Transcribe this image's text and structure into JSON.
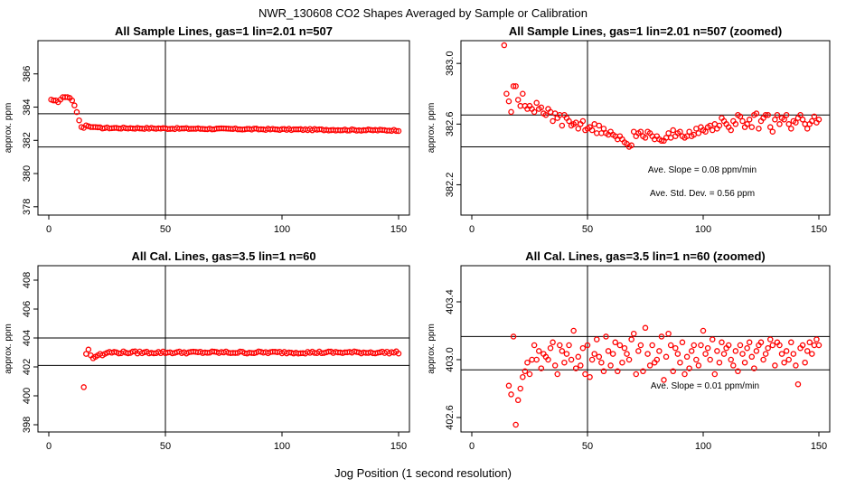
{
  "figure": {
    "title": "NWR_130608  CO2 Shapes Averaged by Sample or Calibration",
    "xlabel": "Jog Position (1 second resolution)"
  },
  "colors": {
    "points": "#ff0000",
    "lines": "#000000"
  },
  "chart_data": [
    {
      "type": "scatter",
      "title": "All Sample Lines, gas=1 lin=2.01 n=507",
      "ylabel": "approx. ppm",
      "xlim": [
        0,
        150
      ],
      "ylim": [
        377.5,
        388
      ],
      "xticks": [
        "0",
        "50",
        "100",
        "150"
      ],
      "xtick_values": [
        0,
        50,
        100,
        150
      ],
      "yticks": [
        "378",
        "380",
        "382",
        "384",
        "386"
      ],
      "ytick_values": [
        378,
        380,
        382,
        384,
        386
      ],
      "vline": 50,
      "hlines": [
        383.6,
        381.6
      ],
      "annotations": [],
      "series": [
        {
          "x": [
            1,
            2,
            3,
            4,
            5,
            6,
            7,
            8,
            9,
            10,
            11,
            12,
            13,
            14,
            15,
            16,
            17,
            18,
            19,
            20
          ],
          "y": [
            384.45,
            384.4,
            384.4,
            384.3,
            384.45,
            384.6,
            384.6,
            384.6,
            384.55,
            384.4,
            384.1,
            383.7,
            383.2,
            382.8,
            382.75,
            382.9,
            382.85,
            382.8,
            382.8,
            382.8
          ]
        },
        {
          "x_start": 21,
          "x_end": 150,
          "y_start": 382.75,
          "y_end": 382.6,
          "jitter": 0.04
        }
      ]
    },
    {
      "type": "scatter",
      "title": "All Sample Lines, gas=1 lin=2.01 n=507 (zoomed)",
      "ylabel": "approx. ppm",
      "xlim": [
        0,
        150
      ],
      "ylim": [
        382.0,
        383.15
      ],
      "xticks": [
        "0",
        "50",
        "100",
        "150"
      ],
      "xtick_values": [
        0,
        50,
        100,
        150
      ],
      "yticks": [
        "382.2",
        "382.6",
        "383.0"
      ],
      "ytick_values": [
        382.2,
        382.6,
        383.0
      ],
      "vline": 50,
      "hlines": [
        382.66,
        382.45
      ],
      "annotations": [
        "Ave. Slope =  0.08  ppm/min",
        "Ave. Std. Dev. =  0.56  ppm"
      ],
      "series": [
        {
          "x": [
            14,
            15,
            16,
            17,
            18,
            19,
            20,
            21,
            22,
            23,
            24,
            25,
            26,
            27,
            28,
            29,
            30,
            31,
            32,
            33,
            34,
            35,
            36,
            37,
            38,
            39,
            40,
            41,
            42,
            43,
            44,
            45,
            46,
            47,
            48,
            49,
            50,
            51,
            52,
            53,
            54,
            55,
            56,
            57,
            58,
            59,
            60,
            61,
            62,
            63,
            64,
            65,
            66,
            67,
            68,
            69,
            70,
            71,
            72,
            73,
            74,
            75,
            76,
            77,
            78,
            79,
            80,
            81,
            82,
            83,
            84,
            85,
            86,
            87,
            88,
            89,
            90,
            91,
            92,
            93,
            94,
            95,
            96,
            97,
            98,
            99,
            100,
            101,
            102,
            103,
            104,
            105,
            106,
            107,
            108,
            109,
            110,
            111,
            112,
            113,
            114,
            115,
            116,
            117,
            118,
            119,
            120,
            121,
            122,
            123,
            124,
            125,
            126,
            127,
            128,
            129,
            130,
            131,
            132,
            133,
            134,
            135,
            136,
            137,
            138,
            139,
            140,
            141,
            142,
            143,
            144,
            145,
            146,
            147,
            148,
            149,
            150
          ],
          "y": [
            383.12,
            382.8,
            382.75,
            382.68,
            382.85,
            382.85,
            382.76,
            382.72,
            382.8,
            382.72,
            382.7,
            382.72,
            382.7,
            382.68,
            382.74,
            382.7,
            382.71,
            382.67,
            382.66,
            382.7,
            382.68,
            382.62,
            382.67,
            382.64,
            382.66,
            382.59,
            382.66,
            382.64,
            382.62,
            382.59,
            382.6,
            382.61,
            382.57,
            382.6,
            382.62,
            382.56,
            382.57,
            382.58,
            382.56,
            382.6,
            382.54,
            382.59,
            382.54,
            382.57,
            382.54,
            382.53,
            382.55,
            382.53,
            382.52,
            382.5,
            382.52,
            382.5,
            382.48,
            382.47,
            382.45,
            382.46,
            382.55,
            382.52,
            382.54,
            382.55,
            382.52,
            382.51,
            382.55,
            382.54,
            382.52,
            382.5,
            382.52,
            382.5,
            382.49,
            382.49,
            382.51,
            382.54,
            382.51,
            382.56,
            382.52,
            382.54,
            382.55,
            382.52,
            382.51,
            382.52,
            382.55,
            382.52,
            382.53,
            382.57,
            382.54,
            382.58,
            382.56,
            382.55,
            382.58,
            382.59,
            382.56,
            382.6,
            382.57,
            382.59,
            382.64,
            382.62,
            382.6,
            382.58,
            382.56,
            382.62,
            382.6,
            382.66,
            382.65,
            382.62,
            382.58,
            382.6,
            382.63,
            382.58,
            382.66,
            382.67,
            382.57,
            382.62,
            382.64,
            382.66,
            382.66,
            382.58,
            382.55,
            382.63,
            382.66,
            382.6,
            382.64,
            382.63,
            382.66,
            382.6,
            382.57,
            382.62,
            382.61,
            382.64,
            382.66,
            382.63,
            382.6,
            382.57,
            382.6,
            382.62,
            382.65,
            382.61,
            382.63
          ]
        }
      ]
    },
    {
      "type": "scatter",
      "title": "All Cal. Lines, gas=3.5 lin=1 n=60",
      "ylabel": "approx. ppm",
      "xlim": [
        0,
        150
      ],
      "ylim": [
        397.5,
        409
      ],
      "xticks": [
        "0",
        "50",
        "100",
        "150"
      ],
      "xtick_values": [
        0,
        50,
        100,
        150
      ],
      "yticks": [
        "398",
        "400",
        "402",
        "404",
        "406",
        "408"
      ],
      "ytick_values": [
        398,
        400,
        402,
        404,
        406,
        408
      ],
      "vline": 50,
      "hlines": [
        404.0,
        402.1
      ],
      "annotations": [],
      "series": [
        {
          "x": [
            15,
            16,
            17,
            18,
            19,
            20,
            21,
            22,
            23,
            24
          ],
          "y": [
            400.6,
            402.9,
            403.2,
            402.8,
            402.6,
            402.7,
            402.8,
            402.9,
            402.8,
            402.9
          ]
        },
        {
          "x_start": 25,
          "x_end": 150,
          "y_start": 403.0,
          "y_end": 403.0,
          "jitter": 0.08
        }
      ]
    },
    {
      "type": "scatter",
      "title": "All Cal. Lines, gas=3.5 lin=1 n=60 (zoomed)",
      "ylabel": "approx. ppm",
      "xlim": [
        0,
        150
      ],
      "ylim": [
        402.5,
        403.65
      ],
      "xticks": [
        "0",
        "50",
        "100",
        "150"
      ],
      "xtick_values": [
        0,
        50,
        100,
        150
      ],
      "yticks": [
        "402.6",
        "403.0",
        "403.4"
      ],
      "ytick_values": [
        402.6,
        403.0,
        403.4
      ],
      "vline": 50,
      "hlines": [
        403.16,
        402.93
      ],
      "annotations": [
        "Ave. Slope =  0.01  ppm/min"
      ],
      "series": [
        {
          "x": [
            16,
            17,
            18,
            19,
            20,
            21,
            22,
            23,
            24,
            25,
            26,
            27,
            28,
            29,
            30,
            31,
            32,
            33,
            34,
            35,
            36,
            37,
            38,
            39,
            40,
            41,
            42,
            43,
            44,
            45,
            46,
            47,
            48,
            49,
            50,
            51,
            52,
            53,
            54,
            55,
            56,
            57,
            58,
            59,
            60,
            61,
            62,
            63,
            64,
            65,
            66,
            67,
            68,
            69,
            70,
            71,
            72,
            73,
            74,
            75,
            76,
            77,
            78,
            79,
            80,
            81,
            82,
            83,
            84,
            85,
            86,
            87,
            88,
            89,
            90,
            91,
            92,
            93,
            94,
            95,
            96,
            97,
            98,
            99,
            100,
            101,
            102,
            103,
            104,
            105,
            106,
            107,
            108,
            109,
            110,
            111,
            112,
            113,
            114,
            115,
            116,
            117,
            118,
            119,
            120,
            121,
            122,
            123,
            124,
            125,
            126,
            127,
            128,
            129,
            130,
            131,
            132,
            133,
            134,
            135,
            136,
            137,
            138,
            139,
            140,
            141,
            142,
            143,
            144,
            145,
            146,
            147,
            148,
            149,
            150
          ],
          "y": [
            402.82,
            402.76,
            403.16,
            402.55,
            402.72,
            402.8,
            402.88,
            402.92,
            402.98,
            402.9,
            403.0,
            403.1,
            403.0,
            403.06,
            402.94,
            403.04,
            403.02,
            403.0,
            403.08,
            403.12,
            402.96,
            402.9,
            403.1,
            403.06,
            402.98,
            403.04,
            403.1,
            403.0,
            403.2,
            402.94,
            403.02,
            402.96,
            403.08,
            402.9,
            403.1,
            402.88,
            403.0,
            403.04,
            403.14,
            403.02,
            402.98,
            402.92,
            403.16,
            403.06,
            402.96,
            403.04,
            403.12,
            402.92,
            403.1,
            402.98,
            403.08,
            403.04,
            403.0,
            403.14,
            403.18,
            402.9,
            403.06,
            403.1,
            402.92,
            403.22,
            403.04,
            402.96,
            403.1,
            402.98,
            403.0,
            403.06,
            403.16,
            402.86,
            403.02,
            403.18,
            403.1,
            402.92,
            403.08,
            403.04,
            402.98,
            403.12,
            402.9,
            403.02,
            402.94,
            403.06,
            403.1,
            403.0,
            402.96,
            403.1,
            403.2,
            403.04,
            403.08,
            403.0,
            403.14,
            402.9,
            403.06,
            402.98,
            403.12,
            403.04,
            403.08,
            403.1,
            403.0,
            402.96,
            403.06,
            402.92,
            403.1,
            403.04,
            402.98,
            403.08,
            403.12,
            403.02,
            402.94,
            403.06,
            403.1,
            403.12,
            403.0,
            403.04,
            403.08,
            403.14,
            403.1,
            402.96,
            403.12,
            403.1,
            403.04,
            402.98,
            403.06,
            403.0,
            403.12,
            403.04,
            402.96,
            402.83,
            403.08,
            403.1,
            402.98,
            403.06,
            403.12,
            403.04,
            403.1,
            403.14,
            403.1
          ]
        }
      ]
    }
  ]
}
